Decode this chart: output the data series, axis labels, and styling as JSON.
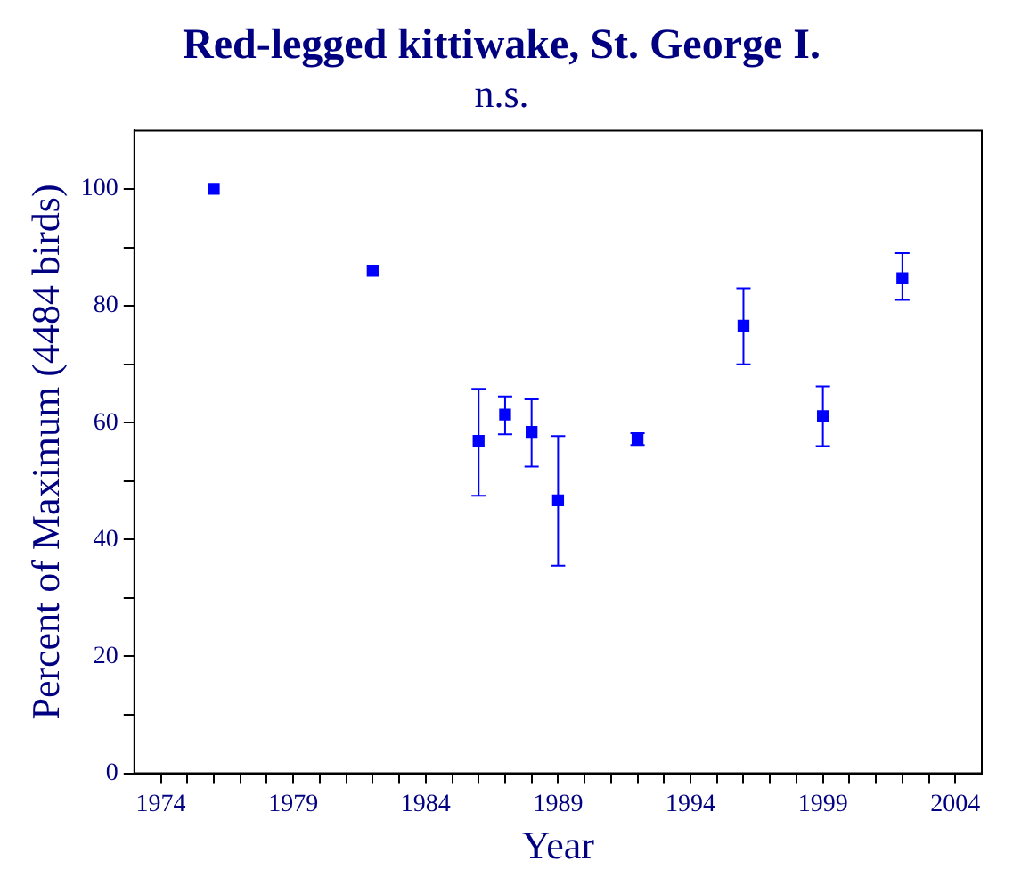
{
  "chart_data": {
    "type": "scatter",
    "title": "Red-legged kittiwake, St. George I.",
    "subtitle": "n.s.",
    "xlabel": "Year",
    "ylabel": "Percent of Maximum (4484 birds)",
    "x": [
      1976,
      1982,
      1986,
      1987,
      1988,
      1989,
      1992,
      1996,
      1999,
      2002
    ],
    "series": [
      {
        "color": "#0000ff",
        "values": [
          100,
          86,
          56.9,
          61.4,
          58.4,
          46.7,
          57.2,
          76.6,
          61.1,
          84.7
        ],
        "errors": [
          null,
          null,
          [
            47.5,
            65.8
          ],
          [
            58,
            64.5
          ],
          [
            52.5,
            64
          ],
          [
            35.5,
            57.7
          ],
          [
            56.2,
            58.2
          ],
          [
            70,
            83
          ],
          [
            56,
            66.2
          ],
          [
            81,
            89
          ]
        ]
      }
    ],
    "marker": "square",
    "grid": false,
    "legend": false,
    "xlim": [
      1973,
      2005
    ],
    "xticks": [
      1974,
      {
        "value": 1975,
        "label": null
      },
      {
        "value": 1976,
        "label": null
      },
      {
        "value": 1977,
        "label": null
      },
      {
        "value": 1978,
        "label": null
      },
      1979,
      {
        "value": 1980,
        "label": null
      },
      {
        "value": 1981,
        "label": null
      },
      {
        "value": 1982,
        "label": null
      },
      {
        "value": 1983,
        "label": null
      },
      1984,
      {
        "value": 1985,
        "label": null
      },
      {
        "value": 1986,
        "label": null
      },
      {
        "value": 1987,
        "label": null
      },
      {
        "value": 1988,
        "label": null
      },
      1989,
      {
        "value": 1990,
        "label": null
      },
      {
        "value": 1991,
        "label": null
      },
      {
        "value": 1992,
        "label": null
      },
      {
        "value": 1993,
        "label": null
      },
      1994,
      {
        "value": 1995,
        "label": null
      },
      {
        "value": 1996,
        "label": null
      },
      {
        "value": 1997,
        "label": null
      },
      {
        "value": 1998,
        "label": null
      },
      1999,
      {
        "value": 2000,
        "label": null
      },
      {
        "value": 2001,
        "label": null
      },
      {
        "value": 2002,
        "label": null
      },
      {
        "value": 2003,
        "label": null
      },
      2004
    ],
    "ylim": [
      0,
      110
    ],
    "yticks": [
      0,
      {
        "value": 10,
        "label": null
      },
      20,
      {
        "value": 30,
        "label": null
      },
      40,
      {
        "value": 50,
        "label": null
      },
      60,
      {
        "value": 70,
        "label": null
      },
      80,
      {
        "value": 90,
        "label": null
      },
      100
    ]
  }
}
